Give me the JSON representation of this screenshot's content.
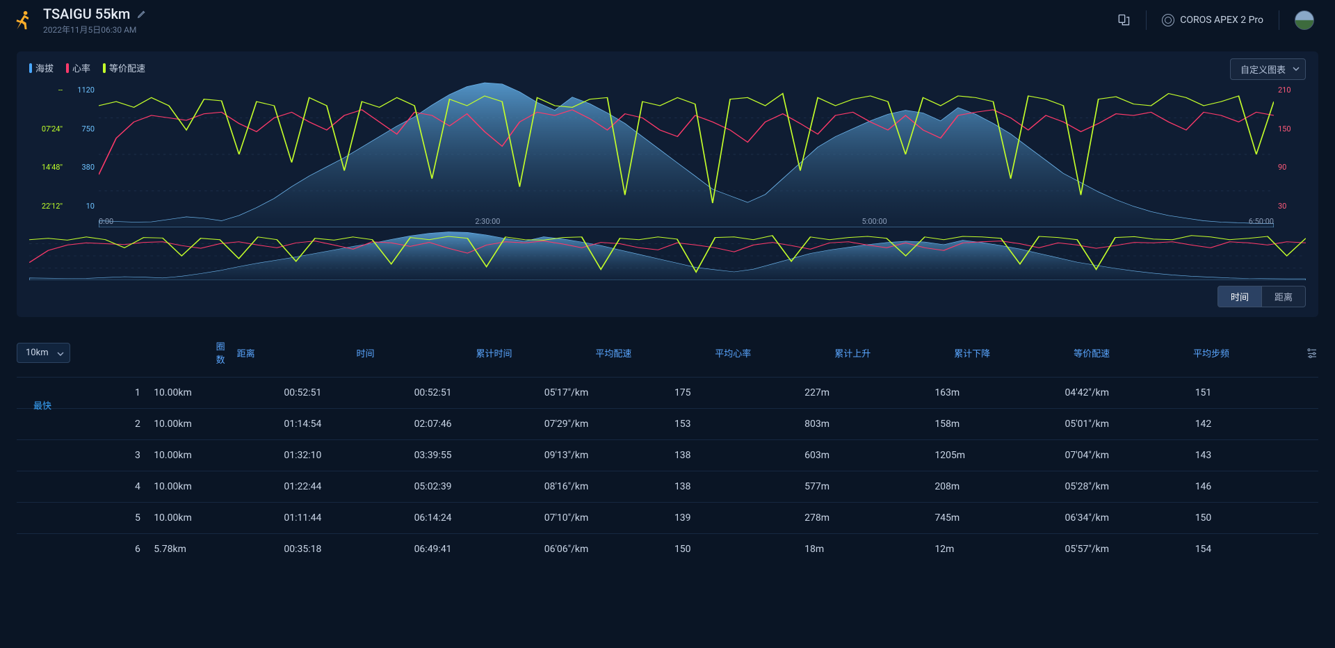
{
  "header": {
    "title": "TSAIGU 55km",
    "date": "2022年11月5日06:30 AM",
    "device": "COROS APEX 2 Pro"
  },
  "chart": {
    "legend": [
      {
        "label": "海拔",
        "color": "#4aa8ff"
      },
      {
        "label": "心率",
        "color": "#ff3a6a"
      },
      {
        "label": "等价配速",
        "color": "#c4ff2a"
      }
    ],
    "dropdown_label": "自定义图表",
    "y_pace": [
      "--",
      "07'24\"",
      "14'48\"",
      "22'12\""
    ],
    "y_elevation": [
      "1120",
      "750",
      "380",
      "10"
    ],
    "y_hr": [
      "210",
      "150",
      "90",
      "30"
    ],
    "x_ticks": [
      "0:00",
      "2:30:00",
      "5:00:00",
      "6:50:00"
    ],
    "axis_toggle": {
      "time": "时间",
      "distance": "距离",
      "active": "time"
    },
    "colors": {
      "elevation_fill_top": "#5ea8e0",
      "elevation_fill_bottom": "#17304c",
      "hr_stroke": "#ff3a6a",
      "pace_stroke": "#c4ff2a",
      "ylim_elev": [
        10,
        1120
      ],
      "ylim_hr": [
        30,
        210
      ],
      "grid_color": "#1a2c45"
    },
    "elevation_profile": [
      60,
      55,
      50,
      52,
      70,
      90,
      80,
      60,
      100,
      160,
      230,
      320,
      400,
      470,
      540,
      620,
      700,
      780,
      850,
      940,
      1020,
      1080,
      1110,
      1100,
      1040,
      960,
      900,
      1000,
      950,
      880,
      800,
      700,
      600,
      500,
      400,
      300,
      250,
      200,
      260,
      380,
      500,
      620,
      700,
      760,
      820,
      870,
      900,
      880,
      820,
      920,
      870,
      800,
      720,
      620,
      520,
      420,
      350,
      280,
      220,
      170,
      130,
      100,
      80,
      60,
      50,
      45,
      40,
      40
    ],
    "hr_profile": [
      95,
      140,
      160,
      168,
      165,
      162,
      170,
      172,
      158,
      148,
      165,
      172,
      160,
      150,
      168,
      175,
      160,
      145,
      172,
      168,
      155,
      170,
      148,
      130,
      160,
      172,
      168,
      175,
      164,
      150,
      170,
      165,
      150,
      142,
      168,
      160,
      150,
      135,
      160,
      170,
      158,
      145,
      168,
      172,
      160,
      150,
      168,
      150,
      140,
      168,
      172,
      175,
      165,
      150,
      168,
      160,
      148,
      158,
      170,
      168,
      172,
      160,
      150,
      172,
      168,
      160,
      172,
      168
    ],
    "pace_profile": [
      150,
      155,
      148,
      160,
      150,
      120,
      158,
      156,
      90,
      155,
      150,
      80,
      160,
      150,
      70,
      155,
      148,
      160,
      150,
      60,
      158,
      150,
      162,
      155,
      50,
      160,
      150,
      148,
      158,
      160,
      40,
      155,
      150,
      160,
      152,
      30,
      158,
      160,
      150,
      165,
      70,
      160,
      150,
      158,
      162,
      155,
      90,
      160,
      150,
      162,
      160,
      155,
      60,
      162,
      158,
      150,
      40,
      158,
      161,
      152,
      150,
      165,
      160,
      150,
      155,
      162,
      90,
      155
    ]
  },
  "table": {
    "lap_unit": "10km",
    "fastest_label": "最快",
    "columns": [
      "圈数",
      "距离",
      "时间",
      "累计时间",
      "平均配速",
      "平均心率",
      "累计上升",
      "累计下降",
      "等价配速",
      "平均步频"
    ],
    "rows": [
      {
        "fastest": true,
        "cells": [
          "1",
          "10.00km",
          "00:52:51",
          "00:52:51",
          "05'17\"/km",
          "175",
          "227m",
          "163m",
          "04'42\"/km",
          "151"
        ]
      },
      {
        "fastest": false,
        "cells": [
          "2",
          "10.00km",
          "01:14:54",
          "02:07:46",
          "07'29\"/km",
          "153",
          "803m",
          "158m",
          "05'01\"/km",
          "142"
        ]
      },
      {
        "fastest": false,
        "cells": [
          "3",
          "10.00km",
          "01:32:10",
          "03:39:55",
          "09'13\"/km",
          "138",
          "603m",
          "1205m",
          "07'04\"/km",
          "143"
        ]
      },
      {
        "fastest": false,
        "cells": [
          "4",
          "10.00km",
          "01:22:44",
          "05:02:39",
          "08'16\"/km",
          "138",
          "577m",
          "208m",
          "05'28\"/km",
          "146"
        ]
      },
      {
        "fastest": false,
        "cells": [
          "5",
          "10.00km",
          "01:11:44",
          "06:14:24",
          "07'10\"/km",
          "139",
          "278m",
          "745m",
          "06'34\"/km",
          "150"
        ]
      },
      {
        "fastest": false,
        "cells": [
          "6",
          "5.78km",
          "00:35:18",
          "06:49:41",
          "06'06\"/km",
          "150",
          "18m",
          "12m",
          "05'57\"/km",
          "154"
        ]
      }
    ]
  }
}
